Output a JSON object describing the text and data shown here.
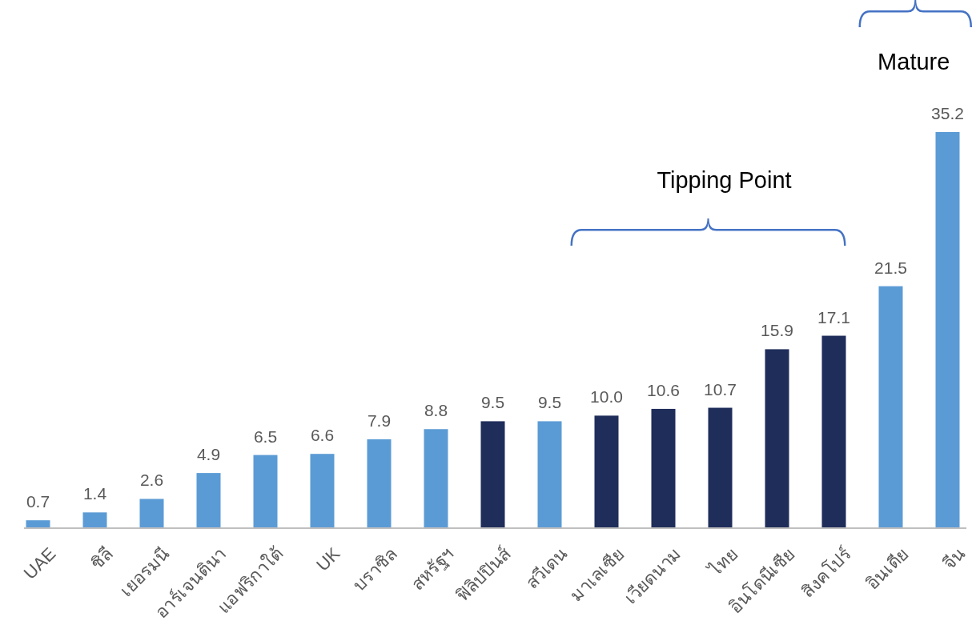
{
  "chart_data": {
    "type": "bar",
    "categories": [
      "UAE",
      "ชิลี",
      "เยอรมนี",
      "อาร์เจนตินา",
      "แอฟริกาใต้",
      "UK",
      "บราซิล",
      "สหรัฐฯ",
      "ฟิลิปปินส์",
      "สวีเดน",
      "มาเลเซีย",
      "เวียดนาม",
      "ไทย",
      "อินโดนีเซีย",
      "สิงคโปร์",
      "อินเดีย",
      "จีน"
    ],
    "values": [
      0.7,
      1.4,
      2.6,
      4.9,
      6.5,
      6.6,
      7.9,
      8.8,
      9.5,
      9.5,
      10.0,
      10.6,
      10.7,
      15.9,
      17.1,
      21.5,
      35.2
    ],
    "value_labels": [
      "0.7",
      "1.4",
      "2.6",
      "4.9",
      "6.5",
      "6.6",
      "7.9",
      "8.8",
      "9.5",
      "9.5",
      "10.0",
      "10.6",
      "10.7",
      "15.9",
      "17.1",
      "21.5",
      "35.2"
    ],
    "colors": [
      "#5b9bd5",
      "#5b9bd5",
      "#5b9bd5",
      "#5b9bd5",
      "#5b9bd5",
      "#5b9bd5",
      "#5b9bd5",
      "#5b9bd5",
      "#1f2d5a",
      "#5b9bd5",
      "#1f2d5a",
      "#1f2d5a",
      "#1f2d5a",
      "#1f2d5a",
      "#1f2d5a",
      "#5b9bd5",
      "#5b9bd5"
    ],
    "annotations": [
      "Tipping Point",
      "Mature"
    ]
  }
}
